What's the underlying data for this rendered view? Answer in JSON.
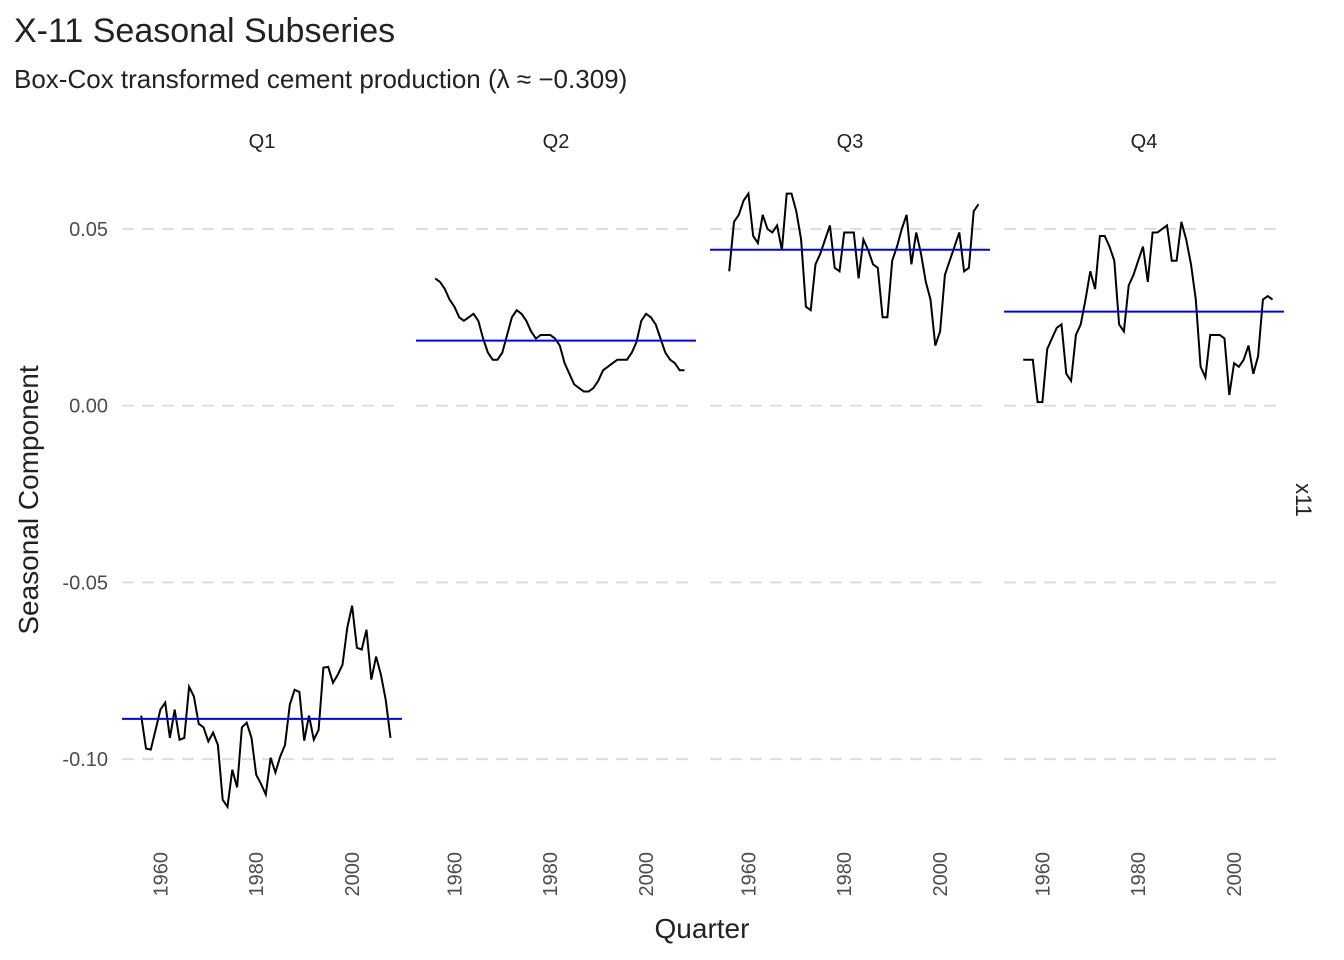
{
  "chart_data": {
    "type": "line",
    "title": "X-11 Seasonal Subseries",
    "subtitle": "Box-Cox transformed cement production (λ ≈ −0.309)",
    "x_label": "Quarter",
    "y_label": "Seasonal Component",
    "strip_label": "x11",
    "line_color": "#000000",
    "mean_color": "#0000ff",
    "grid": true,
    "x": [
      1956,
      1957,
      1958,
      1959,
      1960,
      1961,
      1962,
      1963,
      1964,
      1965,
      1966,
      1967,
      1968,
      1969,
      1970,
      1971,
      1972,
      1973,
      1974,
      1975,
      1976,
      1977,
      1978,
      1979,
      1980,
      1981,
      1982,
      1983,
      1984,
      1985,
      1986,
      1987,
      1988,
      1989,
      1990,
      1991,
      1992,
      1993,
      1994,
      1995,
      1996,
      1997,
      1998,
      1999,
      2000,
      2001,
      2002,
      2003,
      2004,
      2005,
      2006,
      2007,
      2008
    ],
    "xlim": [
      1952,
      2010.4
    ],
    "xticks": [
      1960,
      1980,
      2000
    ],
    "ylim": [
      -0.1243,
      0.0695
    ],
    "yticks": [
      {
        "value": -0.1,
        "label": "-0.10"
      },
      -0.05,
      {
        "value": 0,
        "label": "0.00"
      },
      0.05
    ],
    "facets": [
      {
        "label": "Q1",
        "mean": -0.0886,
        "values": [
          -0.0877,
          -0.097,
          -0.0973,
          -0.0917,
          -0.086,
          -0.084,
          -0.094,
          -0.086,
          -0.0945,
          -0.094,
          -0.0795,
          -0.0823,
          -0.09,
          -0.091,
          -0.095,
          -0.0925,
          -0.096,
          -0.1115,
          -0.1135,
          -0.103,
          -0.108,
          -0.091,
          -0.0897,
          -0.094,
          -0.1044,
          -0.107,
          -0.11,
          -0.0996,
          -0.1038,
          -0.0993,
          -0.096,
          -0.0846,
          -0.0804,
          -0.081,
          -0.0948,
          -0.0877,
          -0.0945,
          -0.0917,
          -0.0741,
          -0.0739,
          -0.0784,
          -0.0761,
          -0.0733,
          -0.0628,
          -0.0566,
          -0.0685,
          -0.069,
          -0.0634,
          -0.0775,
          -0.071,
          -0.0761,
          -0.0832,
          -0.094
        ]
      },
      {
        "label": "Q2",
        "mean": 0.0184,
        "values": [
          0.036,
          0.035,
          0.033,
          0.03,
          0.028,
          0.025,
          0.024,
          0.025,
          0.026,
          0.024,
          0.019,
          0.015,
          0.013,
          0.013,
          0.015,
          0.02,
          0.025,
          0.027,
          0.026,
          0.024,
          0.021,
          0.019,
          0.02,
          0.02,
          0.02,
          0.019,
          0.017,
          0.012,
          0.009,
          0.006,
          0.005,
          0.004,
          0.004,
          0.005,
          0.007,
          0.01,
          0.011,
          0.012,
          0.013,
          0.013,
          0.013,
          0.015,
          0.018,
          0.024,
          0.026,
          0.025,
          0.023,
          0.019,
          0.015,
          0.013,
          0.012,
          0.01,
          0.01
        ]
      },
      {
        "label": "Q3",
        "mean": 0.0441,
        "values": [
          0.038,
          0.052,
          0.054,
          0.058,
          0.06,
          0.048,
          0.046,
          0.054,
          0.05,
          0.049,
          0.051,
          0.044,
          0.06,
          0.06,
          0.055,
          0.047,
          0.028,
          0.027,
          0.04,
          0.043,
          0.047,
          0.051,
          0.039,
          0.038,
          0.049,
          0.049,
          0.049,
          0.036,
          0.047,
          0.044,
          0.04,
          0.039,
          0.025,
          0.025,
          0.041,
          0.045,
          0.05,
          0.054,
          0.04,
          0.049,
          0.043,
          0.035,
          0.03,
          0.017,
          0.021,
          0.037,
          0.041,
          0.045,
          0.049,
          0.038,
          0.039,
          0.055,
          0.057
        ]
      },
      {
        "label": "Q4",
        "mean": 0.0266,
        "values": [
          0.013,
          0.013,
          0.013,
          0.001,
          0.001,
          0.016,
          0.019,
          0.022,
          0.023,
          0.009,
          0.007,
          0.02,
          0.023,
          0.03,
          0.038,
          0.033,
          0.048,
          0.048,
          0.045,
          0.041,
          0.023,
          0.021,
          0.034,
          0.037,
          0.041,
          0.045,
          0.035,
          0.049,
          0.049,
          0.05,
          0.051,
          0.041,
          0.041,
          0.052,
          0.047,
          0.04,
          0.03,
          0.011,
          0.008,
          0.02,
          0.02,
          0.02,
          0.019,
          0.003,
          0.012,
          0.011,
          0.013,
          0.017,
          0.009,
          0.014,
          0.03,
          0.031,
          0.03
        ]
      }
    ]
  }
}
